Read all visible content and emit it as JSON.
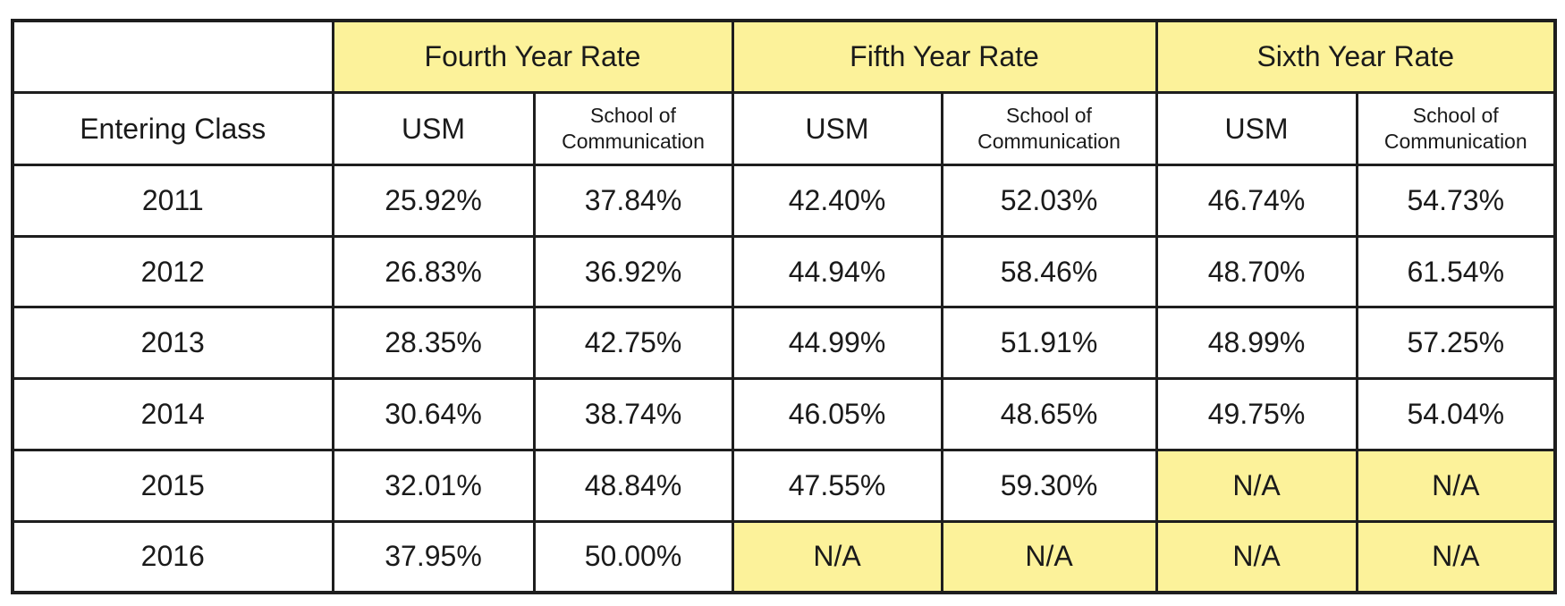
{
  "header": {
    "groups": [
      "Fourth Year Rate",
      "Fifth Year Rate",
      "Sixth Year Rate"
    ],
    "entering_class_label": "Entering Class",
    "usm_label": "USM",
    "school_label_line1": "School of",
    "school_label_line2": "Communication"
  },
  "rows": [
    {
      "year": "2011",
      "values": [
        "25.92%",
        "37.84%",
        "42.40%",
        "52.03%",
        "46.74%",
        "54.73%"
      ]
    },
    {
      "year": "2012",
      "values": [
        "26.83%",
        "36.92%",
        "44.94%",
        "58.46%",
        "48.70%",
        "61.54%"
      ]
    },
    {
      "year": "2013",
      "values": [
        "28.35%",
        "42.75%",
        "44.99%",
        "51.91%",
        "48.99%",
        "57.25%"
      ]
    },
    {
      "year": "2014",
      "values": [
        "30.64%",
        "38.74%",
        "46.05%",
        "48.65%",
        "49.75%",
        "54.04%"
      ]
    },
    {
      "year": "2015",
      "values": [
        "32.01%",
        "48.84%",
        "47.55%",
        "59.30%",
        "N/A",
        "N/A"
      ]
    },
    {
      "year": "2016",
      "values": [
        "37.95%",
        "50.00%",
        "N/A",
        "N/A",
        "N/A",
        "N/A"
      ]
    }
  ],
  "colors": {
    "header_fill": "#fcf29a",
    "na_fill": "#fcf29a",
    "border": "#1e1e1e"
  }
}
